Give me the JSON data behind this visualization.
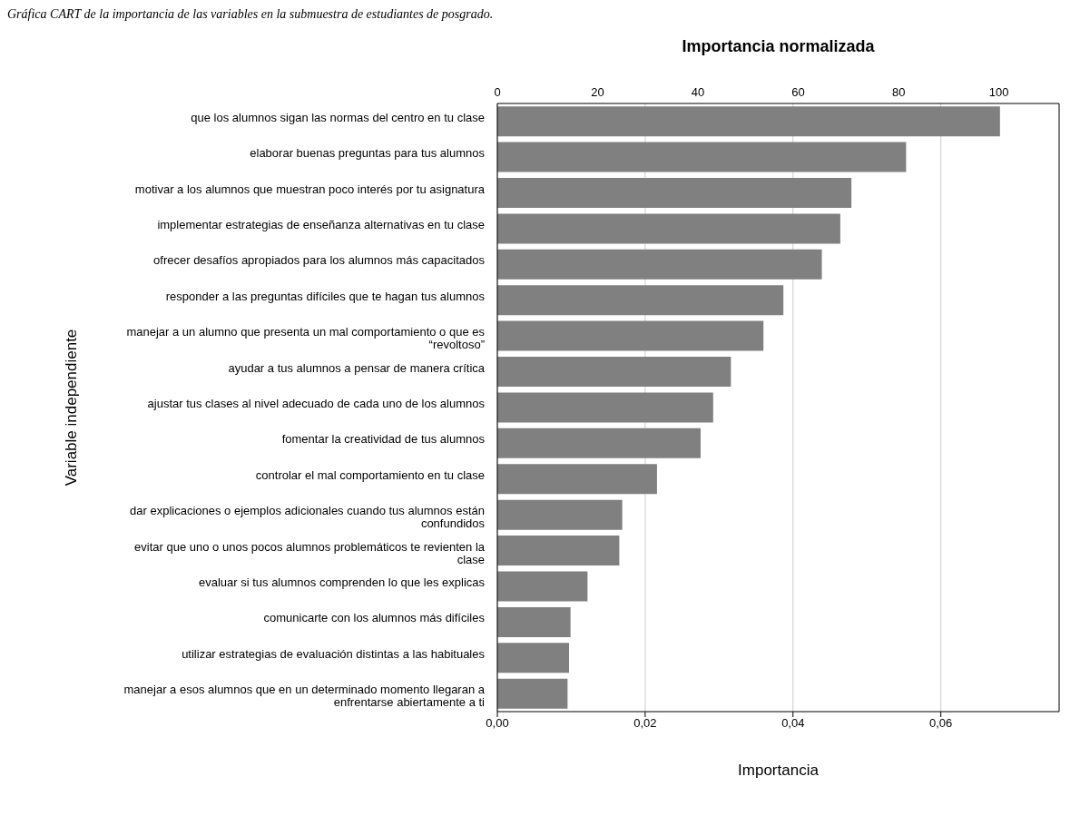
{
  "chart_data": {
    "type": "bar",
    "orientation": "horizontal",
    "title": "Gráfica CART de la importancia de las variables en la submuestra de estudiantes de posgrado.",
    "xlabel": "Importancia",
    "x2label": "Importancia normalizada",
    "ylabel": "Variable independiente",
    "categories": [
      "que los alumnos sigan las normas del centro en tu clase",
      "elaborar buenas preguntas para tus alumnos",
      "motivar a los alumnos que muestran poco interés por tu asignatura",
      "implementar estrategias de enseñanza alternativas en tu clase",
      "ofrecer desafíos apropiados para los alumnos más capacitados",
      "responder a las preguntas difíciles que te hagan tus alumnos",
      "manejar a un alumno que presenta un mal comportamiento o que es “revoltoso”",
      "ayudar a tus alumnos a pensar de manera crítica",
      "ajustar tus clases al nivel adecuado de cada uno de los alumnos",
      "fomentar la creatividad de tus alumnos",
      "controlar el mal comportamiento en tu clase",
      "dar explicaciones o ejemplos adicionales cuando tus alumnos están confundidos",
      "evitar que uno o unos pocos alumnos problemáticos te revienten la clase",
      "evaluar si tus alumnos comprenden lo que les explicas",
      "comunicarte con los alumnos más difíciles",
      "utilizar estrategias de evaluación distintas a las habituales",
      "manejar a esos alumnos que en un determinado momento llegaran a enfrentarse abiertamente a ti"
    ],
    "values": [
      0.068,
      0.0553,
      0.0479,
      0.0464,
      0.0439,
      0.0387,
      0.036,
      0.0316,
      0.0292,
      0.0275,
      0.0216,
      0.0169,
      0.0165,
      0.0122,
      0.0099,
      0.0097,
      0.0095
    ],
    "color": "#808080",
    "xlim": [
      0,
      0.076
    ],
    "xticks": [
      {
        "value": 0,
        "label": "0,00"
      },
      {
        "value": 0.02,
        "label": "0,02"
      },
      {
        "value": 0.04,
        "label": "0,04"
      },
      {
        "value": 0.06,
        "label": "0,06"
      }
    ],
    "x2lim": [
      0,
      112
    ],
    "x2ticks": [
      0,
      20,
      40,
      60,
      80,
      100
    ],
    "grid": "x"
  }
}
